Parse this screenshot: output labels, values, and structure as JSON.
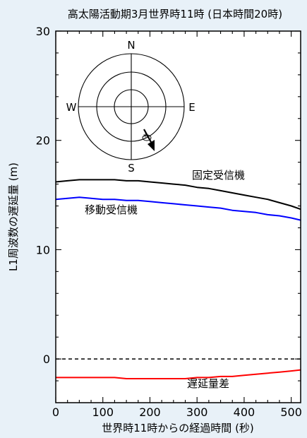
{
  "chart_data": {
    "type": "line",
    "title": "高太陽活動期3月世界時11時 (日本時間20時)",
    "xlabel": "世界時11時からの経過時間 (秒)",
    "ylabel": "L1周波数の遅延量 (m)",
    "xlim": [
      0,
      520
    ],
    "ylim": [
      -4,
      30
    ],
    "x_ticks": [
      0,
      100,
      200,
      300,
      400,
      500
    ],
    "y_ticks": [
      0,
      10,
      20,
      30
    ],
    "grid": false,
    "series": [
      {
        "name": "固定受信機",
        "color": "#000000",
        "x": [
          0,
          25,
          50,
          75,
          100,
          125,
          150,
          175,
          200,
          225,
          250,
          275,
          300,
          325,
          350,
          375,
          400,
          425,
          450,
          475,
          500,
          520
        ],
        "y": [
          16.2,
          16.3,
          16.4,
          16.4,
          16.4,
          16.4,
          16.3,
          16.3,
          16.2,
          16.1,
          16.0,
          15.9,
          15.7,
          15.6,
          15.4,
          15.2,
          15.0,
          14.8,
          14.6,
          14.3,
          14.0,
          13.7
        ]
      },
      {
        "name": "移動受信機",
        "color": "#0000ff",
        "x": [
          0,
          25,
          50,
          75,
          100,
          125,
          150,
          175,
          200,
          225,
          250,
          275,
          300,
          325,
          350,
          375,
          400,
          425,
          450,
          475,
          500,
          520
        ],
        "y": [
          14.6,
          14.7,
          14.8,
          14.7,
          14.6,
          14.6,
          14.5,
          14.5,
          14.4,
          14.3,
          14.2,
          14.1,
          14.0,
          13.9,
          13.8,
          13.6,
          13.5,
          13.4,
          13.2,
          13.1,
          12.9,
          12.7
        ]
      },
      {
        "name": "遅延量差",
        "color": "#ff0000",
        "x": [
          0,
          25,
          50,
          75,
          100,
          125,
          150,
          175,
          200,
          225,
          250,
          275,
          300,
          325,
          350,
          375,
          400,
          425,
          450,
          475,
          500,
          520
        ],
        "y": [
          -1.7,
          -1.7,
          -1.7,
          -1.7,
          -1.7,
          -1.7,
          -1.8,
          -1.8,
          -1.8,
          -1.8,
          -1.8,
          -1.8,
          -1.7,
          -1.7,
          -1.6,
          -1.6,
          -1.5,
          -1.4,
          -1.3,
          -1.2,
          -1.1,
          -1.0
        ]
      }
    ],
    "reference_lines": [
      {
        "y": 0,
        "style": "dashed",
        "color": "#000000"
      }
    ],
    "inset": {
      "type": "skyplot",
      "labels": {
        "n": "N",
        "e": "E",
        "s": "S",
        "w": "W"
      },
      "satellite_marker": "*"
    }
  }
}
